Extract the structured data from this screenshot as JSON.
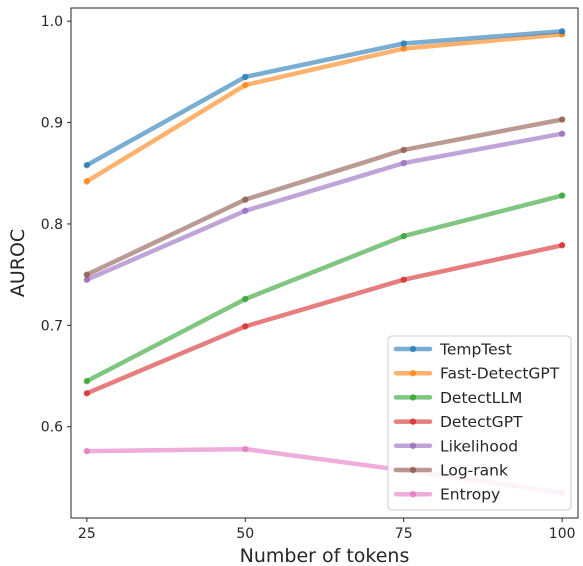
{
  "chart_data": {
    "type": "line",
    "title": "",
    "xlabel": "Number of tokens",
    "ylabel": "AUROC",
    "x": [
      25,
      50,
      75,
      100
    ],
    "x_ticks": [
      "25",
      "50",
      "75",
      "100"
    ],
    "y_ticks": [
      "0.6",
      "0.7",
      "0.8",
      "0.9",
      "1.0"
    ],
    "xlim": [
      22.5,
      102.5
    ],
    "ylim": [
      0.51,
      1.013
    ],
    "grid": false,
    "legend_position": "lower-right",
    "series": [
      {
        "name": "TempTest",
        "color": "#1f77b4",
        "values": [
          0.858,
          0.945,
          0.978,
          0.99
        ]
      },
      {
        "name": "Fast-DetectGPT",
        "color": "#ff7f0e",
        "values": [
          0.842,
          0.937,
          0.973,
          0.987
        ]
      },
      {
        "name": "DetectLLM",
        "color": "#2ca02c",
        "values": [
          0.645,
          0.726,
          0.788,
          0.828
        ]
      },
      {
        "name": "DetectGPT",
        "color": "#d62728",
        "values": [
          0.633,
          0.699,
          0.745,
          0.779
        ]
      },
      {
        "name": "Likelihood",
        "color": "#9467bd",
        "values": [
          0.745,
          0.813,
          0.86,
          0.889
        ]
      },
      {
        "name": "Log-rank",
        "color": "#8c564b",
        "values": [
          0.75,
          0.824,
          0.873,
          0.903
        ]
      },
      {
        "name": "Entropy",
        "color": "#e377c2",
        "values": [
          0.576,
          0.578,
          0.557,
          0.535
        ]
      }
    ]
  }
}
